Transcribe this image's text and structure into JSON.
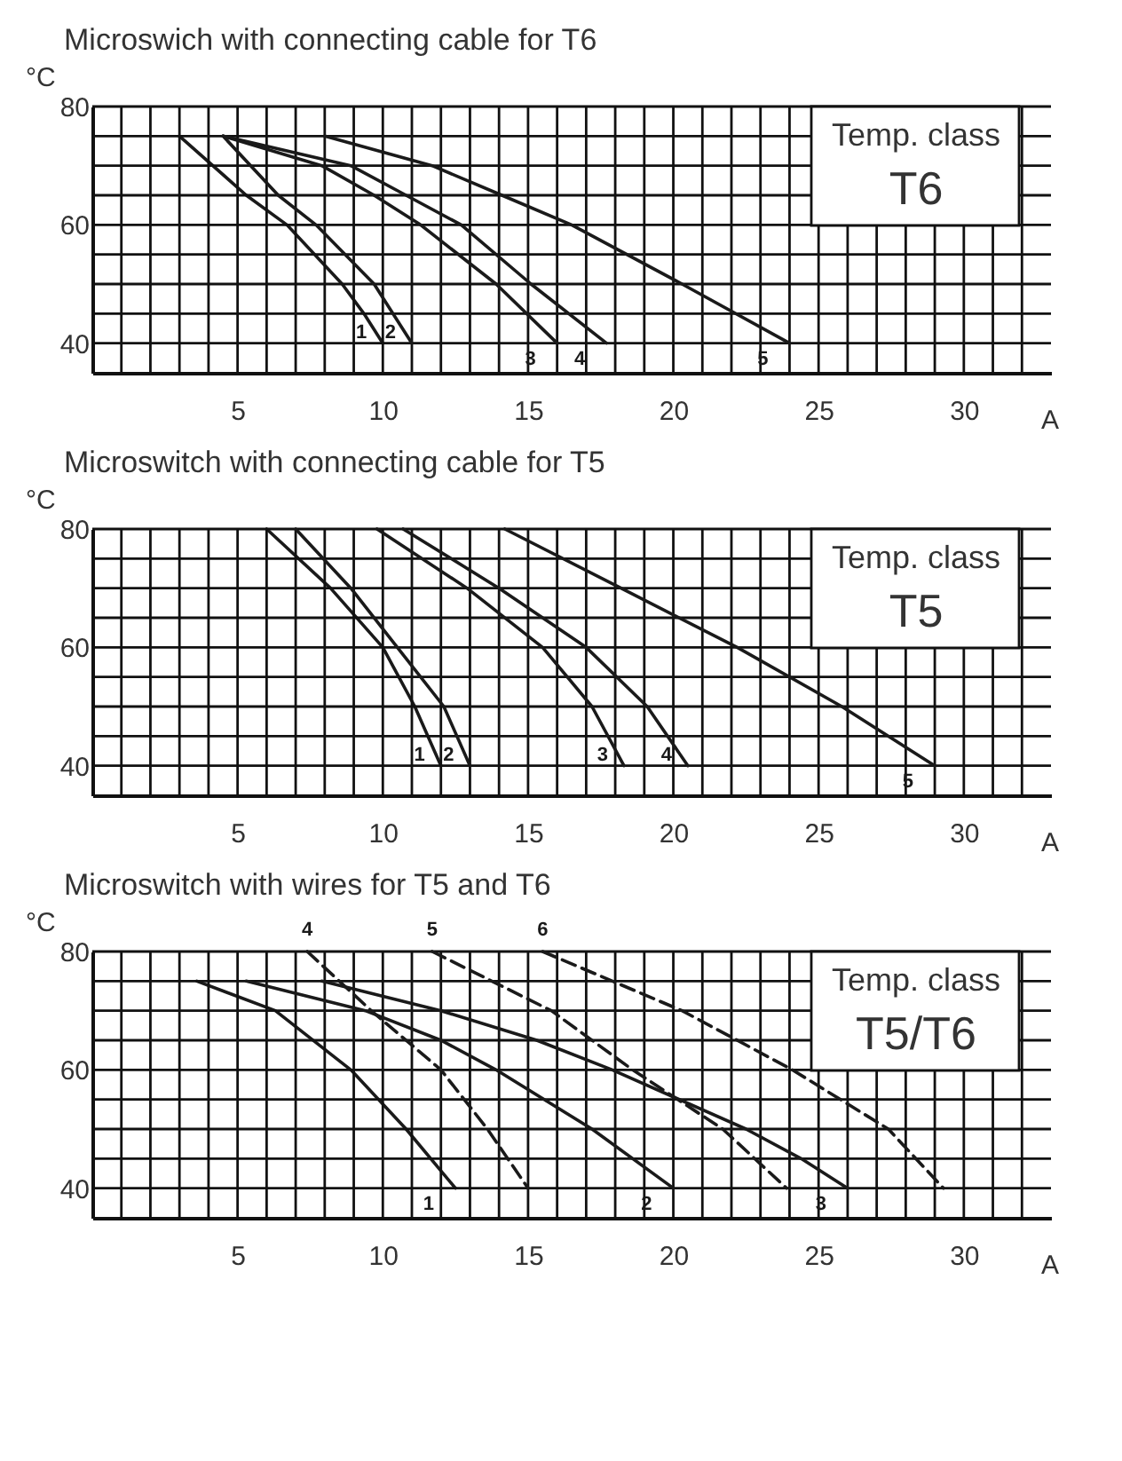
{
  "chart_data": [
    {
      "type": "line",
      "title": "Microswich with connecting cable for T6",
      "xlabel": "A",
      "ylabel": "°C",
      "annotations": [
        "Temp. class",
        "T6"
      ],
      "xlim": [
        0,
        33
      ],
      "ylim": [
        35,
        80
      ],
      "grid": true,
      "xticks": [
        {
          "value": 1,
          "label": null
        },
        {
          "value": 2,
          "label": null
        },
        {
          "value": 3,
          "label": null
        },
        {
          "value": 4,
          "label": null
        },
        5,
        {
          "value": 6,
          "label": null
        },
        {
          "value": 7,
          "label": null
        },
        {
          "value": 8,
          "label": null
        },
        {
          "value": 9,
          "label": null
        },
        10,
        {
          "value": 11,
          "label": null
        },
        {
          "value": 12,
          "label": null
        },
        {
          "value": 13,
          "label": null
        },
        {
          "value": 14,
          "label": null
        },
        15,
        {
          "value": 16,
          "label": null
        },
        {
          "value": 17,
          "label": null
        },
        {
          "value": 18,
          "label": null
        },
        {
          "value": 19,
          "label": null
        },
        20,
        {
          "value": 21,
          "label": null
        },
        {
          "value": 22,
          "label": null
        },
        {
          "value": 23,
          "label": null
        },
        {
          "value": 24,
          "label": null
        },
        25,
        {
          "value": 26,
          "label": null
        },
        {
          "value": 27,
          "label": null
        },
        {
          "value": 28,
          "label": null
        },
        {
          "value": 29,
          "label": null
        },
        30,
        {
          "value": 31,
          "label": null
        },
        {
          "value": 32,
          "label": null
        }
      ],
      "yticks": [
        40,
        {
          "value": 45,
          "label": null
        },
        {
          "value": 50,
          "label": null
        },
        {
          "value": 55,
          "label": null
        },
        60,
        {
          "value": 65,
          "label": null
        },
        {
          "value": 70,
          "label": null
        },
        {
          "value": 75,
          "label": null
        },
        80
      ],
      "series": [
        {
          "name": "1",
          "color": "#1a1a1a",
          "line_style": "solid",
          "x": [
            3.0,
            5.3,
            6.7,
            8.6,
            9.35,
            10.0
          ],
          "values": [
            75,
            65,
            60,
            50,
            45,
            40
          ]
        },
        {
          "name": "2",
          "color": "#1a1a1a",
          "line_style": "solid",
          "x": [
            4.5,
            6.4,
            7.7,
            9.7,
            11.0
          ],
          "values": [
            75,
            65,
            60,
            50,
            40
          ]
        },
        {
          "name": "3",
          "color": "#1a1a1a",
          "line_style": "solid",
          "x": [
            4.5,
            7.9,
            9.7,
            11.3,
            13.9,
            16.0
          ],
          "values": [
            75,
            70,
            65,
            60,
            50,
            40
          ]
        },
        {
          "name": "4",
          "color": "#1a1a1a",
          "line_style": "solid",
          "x": [
            4.5,
            8.9,
            10.8,
            12.7,
            15.1,
            17.7
          ],
          "values": [
            75,
            70,
            65,
            60,
            50,
            40
          ]
        },
        {
          "name": "5",
          "color": "#1a1a1a",
          "line_style": "solid",
          "x": [
            8.0,
            11.7,
            14.1,
            16.5,
            20.3,
            24.0
          ],
          "values": [
            75,
            70,
            65,
            60,
            50,
            40
          ]
        }
      ]
    },
    {
      "type": "line",
      "title": "Microswitch with connecting cable for T5",
      "xlabel": "A",
      "ylabel": "°C",
      "annotations": [
        "Temp. class",
        "T5"
      ],
      "xlim": [
        0,
        33
      ],
      "ylim": [
        35,
        80
      ],
      "grid": true,
      "xticks": [
        {
          "value": 1,
          "label": null
        },
        {
          "value": 2,
          "label": null
        },
        {
          "value": 3,
          "label": null
        },
        {
          "value": 4,
          "label": null
        },
        5,
        {
          "value": 6,
          "label": null
        },
        {
          "value": 7,
          "label": null
        },
        {
          "value": 8,
          "label": null
        },
        {
          "value": 9,
          "label": null
        },
        10,
        {
          "value": 11,
          "label": null
        },
        {
          "value": 12,
          "label": null
        },
        {
          "value": 13,
          "label": null
        },
        {
          "value": 14,
          "label": null
        },
        15,
        {
          "value": 16,
          "label": null
        },
        {
          "value": 17,
          "label": null
        },
        {
          "value": 18,
          "label": null
        },
        {
          "value": 19,
          "label": null
        },
        20,
        {
          "value": 21,
          "label": null
        },
        {
          "value": 22,
          "label": null
        },
        {
          "value": 23,
          "label": null
        },
        {
          "value": 24,
          "label": null
        },
        25,
        {
          "value": 26,
          "label": null
        },
        {
          "value": 27,
          "label": null
        },
        {
          "value": 28,
          "label": null
        },
        {
          "value": 29,
          "label": null
        },
        30,
        {
          "value": 31,
          "label": null
        },
        {
          "value": 32,
          "label": null
        }
      ],
      "yticks": [
        40,
        {
          "value": 45,
          "label": null
        },
        {
          "value": 50,
          "label": null
        },
        {
          "value": 55,
          "label": null
        },
        60,
        {
          "value": 65,
          "label": null
        },
        {
          "value": 70,
          "label": null
        },
        {
          "value": 75,
          "label": null
        },
        80
      ],
      "series": [
        {
          "name": "1",
          "color": "#1a1a1a",
          "line_style": "solid",
          "x": [
            6.0,
            8.2,
            10.0,
            11.1,
            12.0
          ],
          "values": [
            80,
            70,
            60,
            50,
            40
          ]
        },
        {
          "name": "2",
          "color": "#1a1a1a",
          "line_style": "solid",
          "x": [
            7.0,
            8.9,
            10.5,
            12.1,
            13.0
          ],
          "values": [
            80,
            70,
            60,
            50,
            40
          ]
        },
        {
          "name": "3",
          "color": "#1a1a1a",
          "line_style": "solid",
          "x": [
            9.8,
            12.9,
            15.5,
            17.2,
            18.3
          ],
          "values": [
            80,
            70,
            60,
            50,
            40
          ]
        },
        {
          "name": "4",
          "color": "#1a1a1a",
          "line_style": "solid",
          "x": [
            10.7,
            14.0,
            17.0,
            19.1,
            20.5
          ],
          "values": [
            80,
            70,
            60,
            50,
            40
          ]
        },
        {
          "name": "5",
          "color": "#1a1a1a",
          "line_style": "solid",
          "x": [
            14.2,
            18.2,
            22.2,
            25.8,
            29.0
          ],
          "values": [
            80,
            70,
            60,
            50,
            40
          ]
        }
      ]
    },
    {
      "type": "line",
      "title": "Microswitch with wires for T5 and T6",
      "xlabel": "A",
      "ylabel": "°C",
      "annotations": [
        "Temp. class",
        "T5/T6"
      ],
      "xlim": [
        0,
        33
      ],
      "ylim": [
        35,
        80
      ],
      "grid": true,
      "xticks": [
        {
          "value": 1,
          "label": null
        },
        {
          "value": 2,
          "label": null
        },
        {
          "value": 3,
          "label": null
        },
        {
          "value": 4,
          "label": null
        },
        5,
        {
          "value": 6,
          "label": null
        },
        {
          "value": 7,
          "label": null
        },
        {
          "value": 8,
          "label": null
        },
        {
          "value": 9,
          "label": null
        },
        10,
        {
          "value": 11,
          "label": null
        },
        {
          "value": 12,
          "label": null
        },
        {
          "value": 13,
          "label": null
        },
        {
          "value": 14,
          "label": null
        },
        15,
        {
          "value": 16,
          "label": null
        },
        {
          "value": 17,
          "label": null
        },
        {
          "value": 18,
          "label": null
        },
        {
          "value": 19,
          "label": null
        },
        20,
        {
          "value": 21,
          "label": null
        },
        {
          "value": 22,
          "label": null
        },
        {
          "value": 23,
          "label": null
        },
        {
          "value": 24,
          "label": null
        },
        25,
        {
          "value": 26,
          "label": null
        },
        {
          "value": 27,
          "label": null
        },
        {
          "value": 28,
          "label": null
        },
        {
          "value": 29,
          "label": null
        },
        30,
        {
          "value": 31,
          "label": null
        },
        {
          "value": 32,
          "label": null
        }
      ],
      "yticks": [
        40,
        {
          "value": 45,
          "label": null
        },
        {
          "value": 50,
          "label": null
        },
        {
          "value": 55,
          "label": null
        },
        60,
        {
          "value": 65,
          "label": null
        },
        {
          "value": 70,
          "label": null
        },
        {
          "value": 75,
          "label": null
        },
        80
      ],
      "series": [
        {
          "name": "1",
          "color": "#1a1a1a",
          "line_style": "solid",
          "x": [
            3.6,
            6.3,
            8.9,
            10.8,
            12.5
          ],
          "values": [
            75,
            70,
            60,
            50,
            40
          ]
        },
        {
          "name": "2",
          "color": "#1a1a1a",
          "line_style": "solid",
          "x": [
            5.3,
            9.4,
            12.0,
            13.9,
            17.2,
            20.0
          ],
          "values": [
            75,
            70,
            65,
            60,
            50,
            40
          ]
        },
        {
          "name": "3",
          "color": "#1a1a1a",
          "line_style": "solid",
          "x": [
            7.9,
            12.0,
            15.3,
            17.9,
            22.5,
            24.4,
            26.0
          ],
          "values": [
            75,
            70,
            65,
            60,
            50,
            45,
            40
          ]
        },
        {
          "name": "4",
          "color": "#1a1a1a",
          "line_style": "dashed",
          "x": [
            7.4,
            9.6,
            12.0,
            13.6,
            15.0
          ],
          "values": [
            80,
            70,
            60,
            50,
            40
          ]
        },
        {
          "name": "5",
          "color": "#1a1a1a",
          "line_style": "dashed",
          "x": [
            11.7,
            15.8,
            18.6,
            21.7,
            23.9
          ],
          "values": [
            80,
            70,
            60,
            50,
            40
          ]
        },
        {
          "name": "6",
          "color": "#1a1a1a",
          "line_style": "dashed",
          "x": [
            15.5,
            20.3,
            24.1,
            27.4,
            29.3
          ],
          "values": [
            80,
            70,
            60,
            50,
            40
          ]
        }
      ]
    }
  ]
}
